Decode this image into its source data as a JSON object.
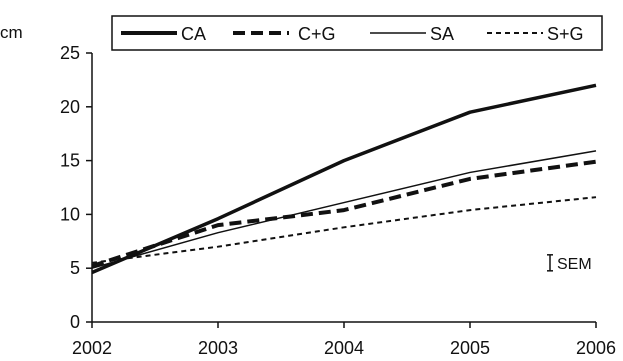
{
  "chart_data": {
    "type": "line",
    "title": "",
    "xlabel": "",
    "ylabel": "cm",
    "x": [
      2002,
      2003,
      2004,
      2005,
      2006
    ],
    "ylim": [
      0,
      25
    ],
    "yticks": [
      0,
      5,
      10,
      15,
      20,
      25
    ],
    "grid": false,
    "legend": "top",
    "series": [
      {
        "name": "CA",
        "values": [
          4.6,
          9.6,
          15.0,
          19.5,
          22.0
        ],
        "style": "solid-thick",
        "color": "#111111"
      },
      {
        "name": "C+G",
        "values": [
          5.2,
          9.0,
          10.4,
          13.3,
          14.9
        ],
        "style": "dashed-thick",
        "color": "#111111"
      },
      {
        "name": "SA",
        "values": [
          5.0,
          8.3,
          11.1,
          13.9,
          15.9
        ],
        "style": "solid-thin",
        "color": "#111111"
      },
      {
        "name": "S+G",
        "values": [
          5.5,
          7.0,
          8.8,
          10.4,
          11.6
        ],
        "style": "dashed-thin",
        "color": "#111111"
      }
    ],
    "annotations": [
      {
        "text": "SEM",
        "x": 2006,
        "y": 5.5,
        "marker": "error-bar"
      }
    ]
  }
}
